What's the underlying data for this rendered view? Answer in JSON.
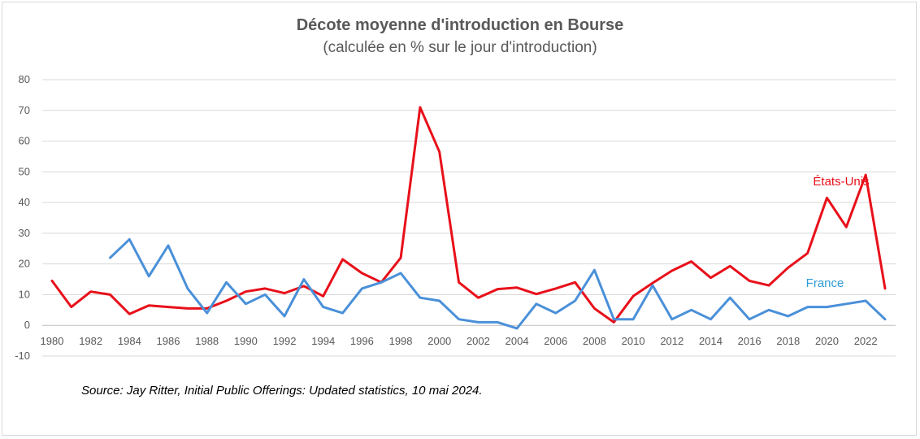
{
  "chart_data": {
    "type": "line",
    "title": "Décote moyenne d'introduction en Bourse",
    "subtitle": "(calculée en % sur le jour d'introduction)",
    "source": "Source: Jay Ritter, Initial Public Offerings: Updated statistics, 10 mai 2024.",
    "ylim": [
      -10,
      80
    ],
    "yticks": [
      80,
      70,
      60,
      50,
      40,
      30,
      20,
      10,
      0,
      -10
    ],
    "xlim": [
      1980,
      2023
    ],
    "xticks": [
      1980,
      1982,
      1984,
      1986,
      1988,
      1990,
      1992,
      1994,
      1996,
      1998,
      2000,
      2002,
      2004,
      2006,
      2008,
      2010,
      2012,
      2014,
      2016,
      2018,
      2020,
      2022
    ],
    "grid": true,
    "series": [
      {
        "name": "États-Unis",
        "color": "#e8101a",
        "x": [
          1980,
          1981,
          1982,
          1983,
          1984,
          1985,
          1986,
          1987,
          1988,
          1989,
          1990,
          1991,
          1992,
          1993,
          1994,
          1995,
          1996,
          1997,
          1998,
          1999,
          2000,
          2001,
          2002,
          2003,
          2004,
          2005,
          2006,
          2007,
          2008,
          2009,
          2010,
          2011,
          2012,
          2013,
          2014,
          2015,
          2016,
          2017,
          2018,
          2019,
          2020,
          2021,
          2022,
          2023
        ],
        "values": [
          14.5,
          6,
          11,
          10,
          3.7,
          6.5,
          6,
          5.5,
          5.5,
          8,
          11,
          12,
          10.5,
          12.8,
          9.5,
          21.5,
          17,
          14,
          22,
          71,
          56.5,
          14,
          9,
          11.8,
          12.3,
          10.2,
          12,
          14,
          5.5,
          1,
          9.5,
          13.8,
          17.8,
          20.8,
          15.5,
          19.3,
          14.5,
          13,
          18.8,
          23.5,
          41.5,
          32,
          49,
          12
        ]
      },
      {
        "name": "France",
        "color": "#4a90d9",
        "x": [
          1983,
          1984,
          1985,
          1986,
          1987,
          1988,
          1989,
          1990,
          1991,
          1992,
          1993,
          1994,
          1995,
          1996,
          1997,
          1998,
          1999,
          2000,
          2001,
          2002,
          2003,
          2004,
          2005,
          2006,
          2007,
          2008,
          2009,
          2010,
          2011,
          2012,
          2013,
          2014,
          2015,
          2016,
          2017,
          2018,
          2019,
          2020,
          2021,
          2022,
          2023
        ],
        "values": [
          22,
          28,
          16,
          26,
          12,
          4,
          14,
          7,
          10,
          3,
          15,
          6,
          4,
          12,
          14,
          17,
          9,
          8,
          2,
          1,
          1,
          -1,
          7,
          4,
          8,
          18,
          2,
          2,
          13,
          2,
          5,
          2,
          9,
          2,
          5,
          3,
          6,
          6,
          7,
          8,
          2
        ]
      }
    ]
  },
  "labels": {
    "us": "États-Unis",
    "france": "France"
  }
}
